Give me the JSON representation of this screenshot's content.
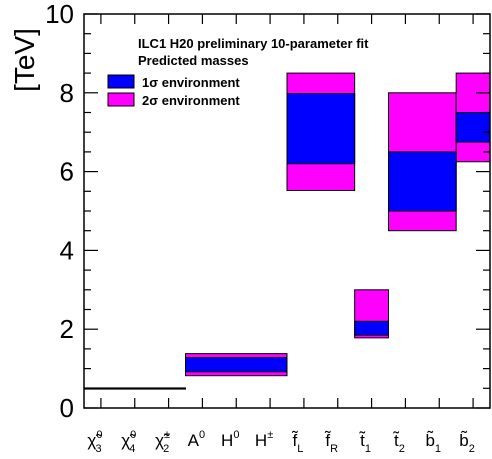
{
  "chart_data": {
    "type": "bar",
    "ylabel": "[TeV]",
    "ylim": [
      0,
      10
    ],
    "yticks": [
      0,
      2,
      4,
      6,
      8,
      10
    ],
    "title": "ILC1 H20 preliminary 10-parameter fit",
    "subtitle": "Predicted masses",
    "legend": [
      {
        "label": "1σ environment",
        "color": "#0000ff"
      },
      {
        "label": "2σ environment",
        "color": "#ff00ff"
      }
    ],
    "legend_placement": "top-left",
    "categories": [
      {
        "base": "χ̃",
        "sup": "0",
        "sub": "3"
      },
      {
        "base": "χ̃",
        "sup": "0",
        "sub": "4"
      },
      {
        "base": "χ̃",
        "sup": "±",
        "sub": "2"
      },
      {
        "base": "A",
        "sup": "0",
        "sub": ""
      },
      {
        "base": "H",
        "sup": "0",
        "sub": ""
      },
      {
        "base": "H",
        "sup": "±",
        "sub": ""
      },
      {
        "base": "f̃",
        "sup": "",
        "sub": "L"
      },
      {
        "base": "f̃",
        "sup": "",
        "sub": "R"
      },
      {
        "base": "t̃",
        "sup": "",
        "sub": "1"
      },
      {
        "base": "t̃",
        "sup": "",
        "sub": "2"
      },
      {
        "base": "b̃",
        "sup": "",
        "sub": "1"
      },
      {
        "base": "b̃",
        "sup": "",
        "sub": "2"
      }
    ],
    "series": [
      {
        "name": "2σ environment",
        "color": "#ff00ff",
        "ranges": [
          {
            "start": 0,
            "end": 2,
            "low": 0.49,
            "high": 0.51
          },
          {
            "start": 3,
            "end": 5,
            "low": 0.82,
            "high": 1.38
          },
          {
            "start": 6,
            "end": 7,
            "low": 5.52,
            "high": 8.5
          },
          {
            "start": 8,
            "end": 8,
            "low": 1.78,
            "high": 3.0
          },
          {
            "start": 9,
            "end": 10,
            "low": 4.5,
            "high": 8.0
          },
          {
            "start": 11,
            "end": 11,
            "low": 6.25,
            "high": 8.5
          }
        ]
      },
      {
        "name": "1σ environment",
        "color": "#0000ff",
        "ranges": [
          {
            "start": 0,
            "end": 2,
            "low": 0.495,
            "high": 0.505
          },
          {
            "start": 3,
            "end": 5,
            "low": 0.92,
            "high": 1.28
          },
          {
            "start": 6,
            "end": 7,
            "low": 6.2,
            "high": 7.98
          },
          {
            "start": 8,
            "end": 8,
            "low": 1.85,
            "high": 2.2
          },
          {
            "start": 9,
            "end": 10,
            "low": 5.0,
            "high": 6.5
          },
          {
            "start": 11,
            "end": 11,
            "low": 6.75,
            "high": 7.5
          }
        ]
      }
    ]
  }
}
